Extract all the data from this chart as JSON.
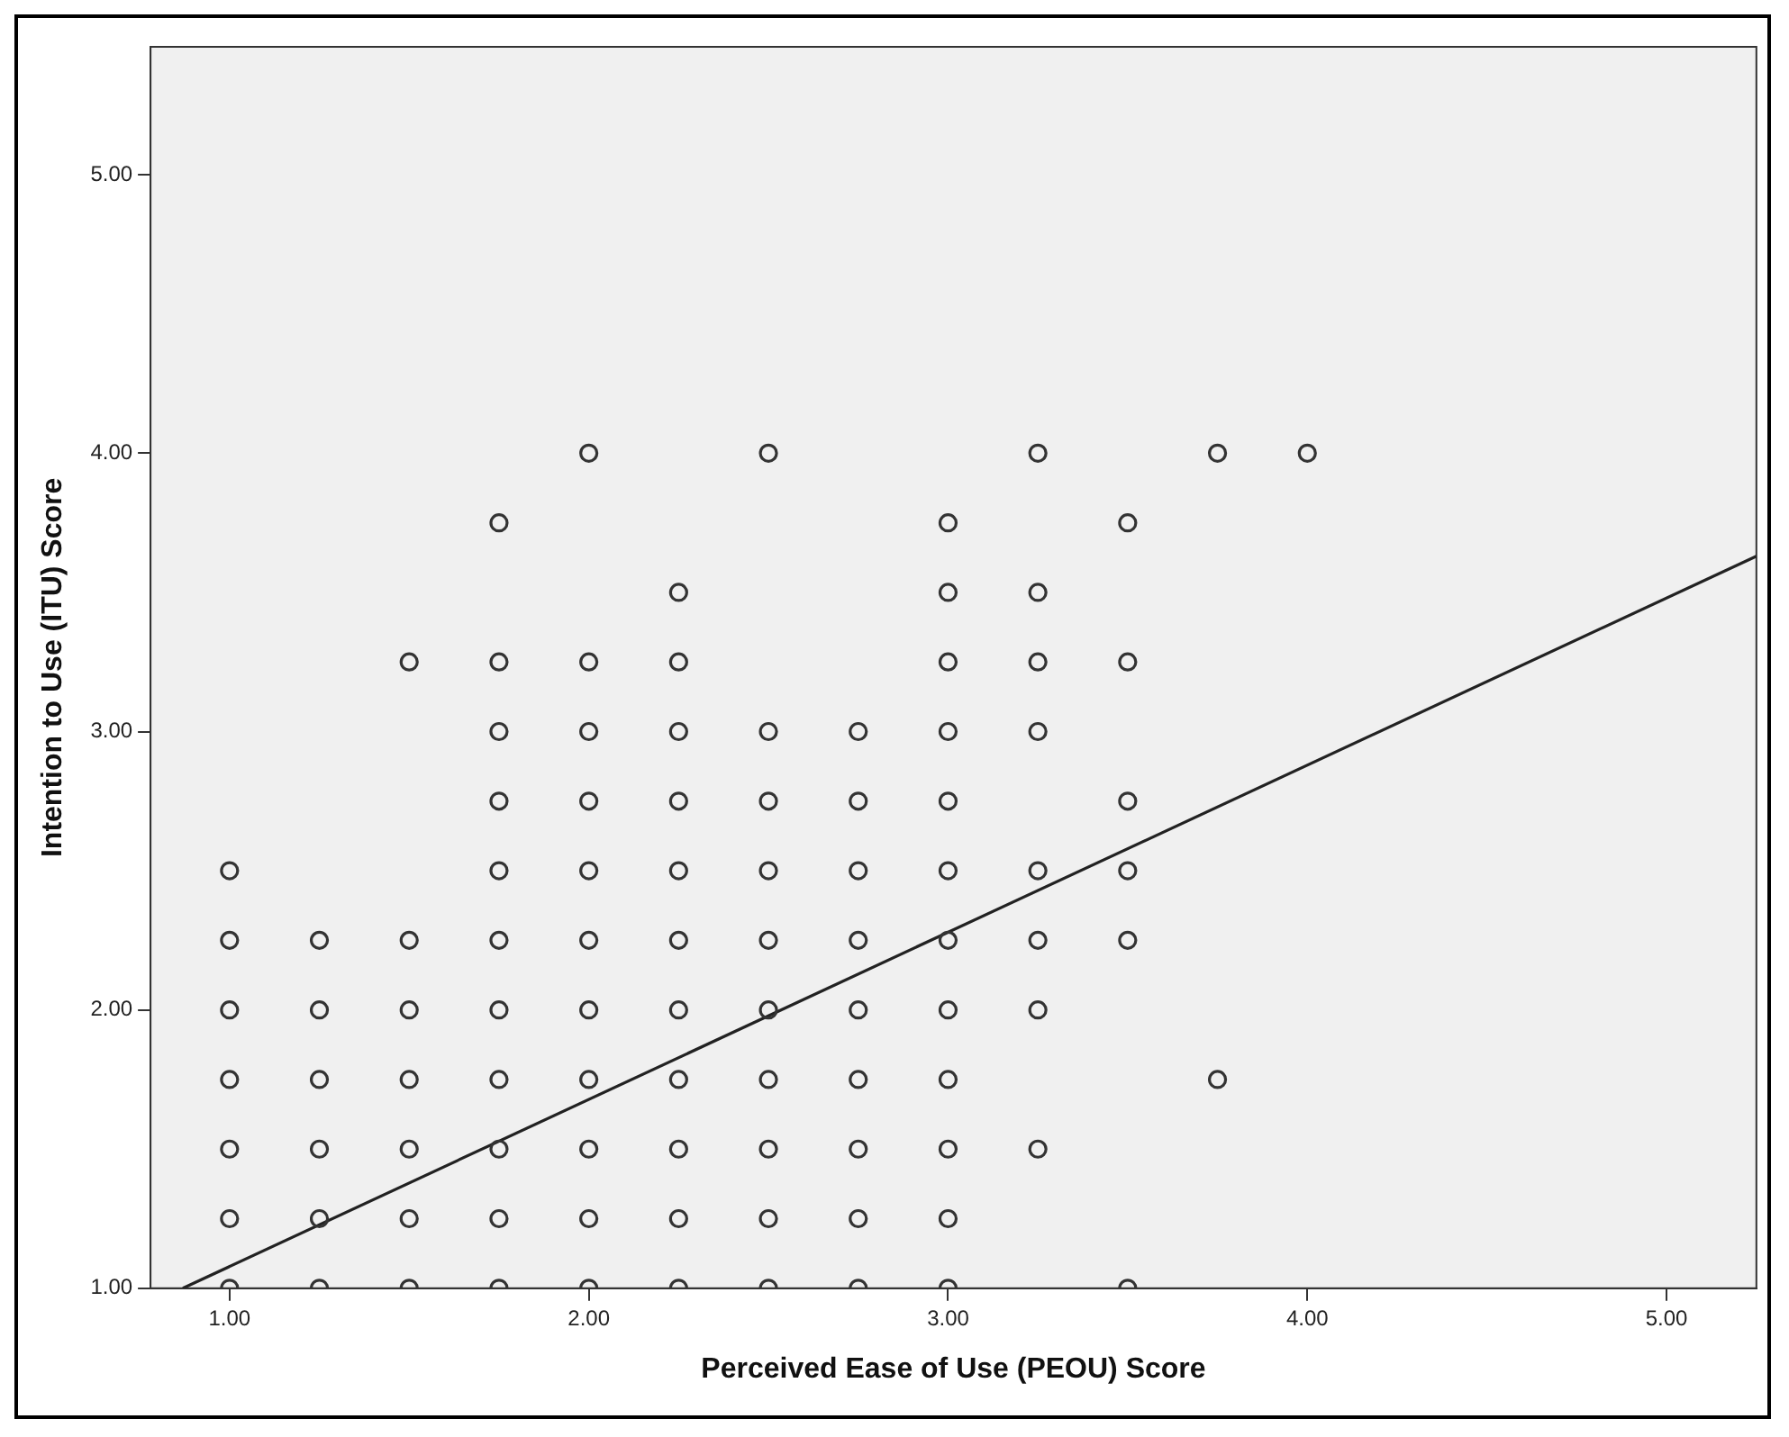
{
  "chart_data": {
    "type": "scatter",
    "xlabel": "Perceived Ease of Use (PEOU) Score",
    "ylabel": "Intention to Use (ITU) Score",
    "xlim": [
      0.78,
      5.25
    ],
    "ylim": [
      1.0,
      5.46
    ],
    "xticks": [
      {
        "value": 1,
        "label": "1.00"
      },
      {
        "value": 2,
        "label": "2.00"
      },
      {
        "value": 3,
        "label": "3.00"
      },
      {
        "value": 4,
        "label": "4.00"
      },
      {
        "value": 5,
        "label": "5.00"
      }
    ],
    "yticks": [
      {
        "value": 1,
        "label": "1.00"
      },
      {
        "value": 2,
        "label": "2.00"
      },
      {
        "value": 3,
        "label": "3.00"
      },
      {
        "value": 4,
        "label": "4.00"
      },
      {
        "value": 5,
        "label": "5.00"
      }
    ],
    "grid": false,
    "legend": false,
    "series": [
      {
        "type": "scatter",
        "marker": "circle",
        "color": "#333333",
        "x": [
          1,
          1,
          1,
          1,
          1,
          1,
          1,
          1.25,
          1.25,
          1.25,
          1.25,
          1.25,
          1.25,
          1.5,
          1.5,
          1.5,
          1.5,
          1.5,
          1.5,
          1.5,
          1.75,
          1.75,
          1.75,
          1.75,
          1.75,
          1.75,
          1.75,
          1.75,
          1.75,
          1.75,
          1.75,
          2,
          2,
          2,
          2,
          2,
          2,
          2,
          2,
          2,
          2,
          2,
          2.25,
          2.25,
          2.25,
          2.25,
          2.25,
          2.25,
          2.25,
          2.25,
          2.25,
          2.25,
          2.25,
          2.5,
          2.5,
          2.5,
          2.5,
          2.5,
          2.5,
          2.5,
          2.5,
          2.5,
          2.5,
          2.75,
          2.75,
          2.75,
          2.75,
          2.75,
          2.75,
          2.75,
          2.75,
          2.75,
          3,
          3,
          3,
          3,
          3,
          3,
          3,
          3,
          3,
          3,
          3,
          3,
          3.25,
          3.25,
          3.25,
          3.25,
          3.25,
          3.25,
          3.25,
          3.25,
          3.5,
          3.5,
          3.5,
          3.5,
          3.5,
          3.5,
          3.75,
          3.75,
          4
        ],
        "values": [
          2.5,
          2.25,
          2,
          1.75,
          1.5,
          1.25,
          1,
          2.25,
          2,
          1.75,
          1.5,
          1.25,
          1,
          3.25,
          2.25,
          2,
          1.75,
          1.5,
          1.25,
          1,
          3.75,
          3.25,
          3,
          2.75,
          2.5,
          2.25,
          2,
          1.75,
          1.5,
          1.25,
          1,
          4,
          3.25,
          3,
          2.75,
          2.5,
          2.25,
          2,
          1.75,
          1.5,
          1.25,
          1,
          3.5,
          3.25,
          3,
          2.75,
          2.5,
          2.25,
          2,
          1.75,
          1.5,
          1.25,
          1,
          4,
          3,
          2.75,
          2.5,
          2.25,
          2,
          1.75,
          1.5,
          1.25,
          1,
          3,
          2.75,
          2.5,
          2.25,
          2,
          1.75,
          1.5,
          1.25,
          1,
          3.75,
          3.5,
          3.25,
          3,
          2.75,
          2.5,
          2.25,
          2,
          1.75,
          1.5,
          1.25,
          1,
          4,
          3.5,
          3.25,
          3,
          2.5,
          2.25,
          2,
          1.5,
          3.75,
          3.25,
          2.75,
          2.5,
          2.25,
          1,
          4,
          1.75,
          4
        ]
      },
      {
        "type": "line",
        "marker": "none",
        "line_style": "solid",
        "color": "#222222",
        "x": [
          0.87,
          5.25
        ],
        "values": [
          1.0,
          3.63
        ]
      }
    ]
  }
}
